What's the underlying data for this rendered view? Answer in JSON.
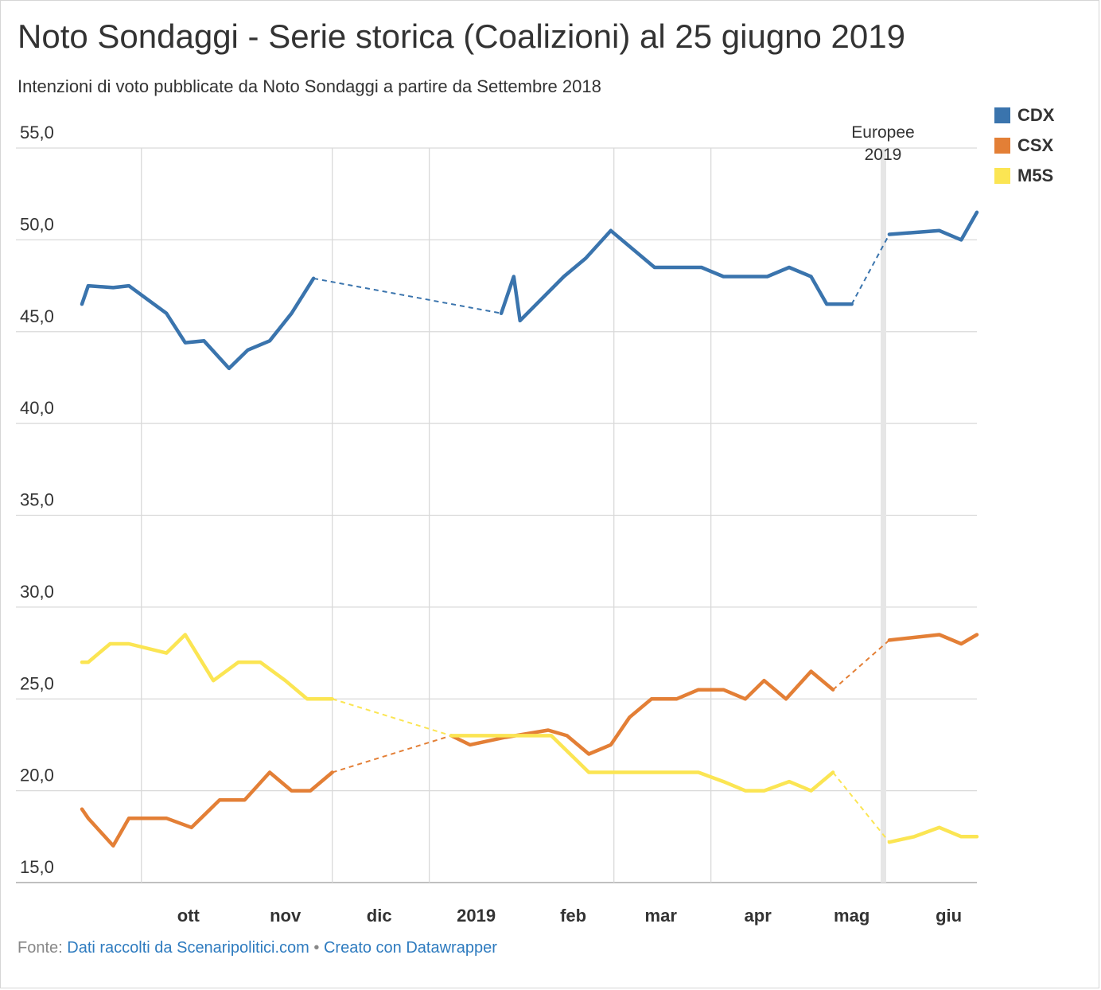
{
  "header": {
    "title": "Noto Sondaggi - Serie storica (Coalizioni) al 25 giugno 2019",
    "subtitle": "Intenzioni di voto pubblicate da Noto Sondaggi a partire da Settembre 2018"
  },
  "footer": {
    "source_prefix": "Fonte:",
    "source_link": "Dati raccolti da Scenaripolitici.com",
    "separator": "•",
    "made_with": "Creato con Datawrapper"
  },
  "chart_data": {
    "type": "line",
    "title": "Noto Sondaggi - Serie storica (Coalizioni) al 25 giugno 2019",
    "subtitle": "Intenzioni di voto pubblicate da Noto Sondaggi a partire da Settembre 2018",
    "xlabel": "",
    "ylabel": "",
    "ylim": [
      15,
      55
    ],
    "y_ticks": [
      "55,0",
      "50,0",
      "45,0",
      "40,0",
      "35,0",
      "30,0",
      "25,0",
      "20,0",
      "15,0"
    ],
    "y_tick_values": [
      55,
      50,
      45,
      40,
      35,
      30,
      25,
      20,
      15
    ],
    "xlim": [
      "2018-09-12",
      "2019-06-25"
    ],
    "x_ticks": [
      {
        "date": "2018-10-01",
        "label": "ott",
        "gridline": true
      },
      {
        "date": "2018-11-01",
        "label": "nov",
        "gridline": false
      },
      {
        "date": "2018-12-01",
        "label": "dic",
        "gridline": true
      },
      {
        "date": "2019-01-01",
        "label": "2019",
        "gridline": true
      },
      {
        "date": "2019-02-01",
        "label": "feb",
        "gridline": false
      },
      {
        "date": "2019-03-01",
        "label": "mar",
        "gridline": true
      },
      {
        "date": "2019-04-01",
        "label": "apr",
        "gridline": true
      },
      {
        "date": "2019-05-01",
        "label": "mag",
        "gridline": false
      },
      {
        "date": "2019-06-01",
        "label": "giu",
        "gridline": false
      }
    ],
    "grid": true,
    "legend_position": "top-right",
    "annotations": [
      {
        "label_line1": "Europee",
        "label_line2": "2019",
        "date": "2019-05-26"
      }
    ],
    "series": [
      {
        "name": "CDX",
        "color": "#3a74ad",
        "points": [
          [
            "2018-09-12",
            46.5
          ],
          [
            "2018-09-14",
            47.5
          ],
          [
            "2018-09-22",
            47.4
          ],
          [
            "2018-09-27",
            47.5
          ],
          [
            "2018-10-09",
            46.0
          ],
          [
            "2018-10-15",
            44.4
          ],
          [
            "2018-10-21",
            44.5
          ],
          [
            "2018-10-29",
            43.0
          ],
          [
            "2018-11-04",
            44.0
          ],
          [
            "2018-11-11",
            44.5
          ],
          [
            "2018-11-18",
            46.0
          ],
          [
            "2018-11-25",
            47.9
          ],
          [
            "2019-01-24",
            46.0
          ],
          [
            "2019-01-28",
            48.0
          ],
          [
            "2019-01-30",
            45.6
          ],
          [
            "2019-02-13",
            48.0
          ],
          [
            "2019-02-20",
            49.0
          ],
          [
            "2019-02-28",
            50.5
          ],
          [
            "2019-03-14",
            48.5
          ],
          [
            "2019-03-29",
            48.5
          ],
          [
            "2019-04-05",
            48.0
          ],
          [
            "2019-04-19",
            48.0
          ],
          [
            "2019-04-26",
            48.5
          ],
          [
            "2019-05-03",
            48.0
          ],
          [
            "2019-05-08",
            46.5
          ],
          [
            "2019-05-16",
            46.5
          ],
          [
            "2019-05-28",
            50.3
          ],
          [
            "2019-06-13",
            50.5
          ],
          [
            "2019-06-20",
            50.0
          ],
          [
            "2019-06-25",
            51.5
          ]
        ],
        "dashed_gaps": [
          [
            "2018-11-25",
            "2019-01-24"
          ],
          [
            "2019-05-16",
            "2019-05-28"
          ]
        ]
      },
      {
        "name": "CSX",
        "color": "#e37f36",
        "points": [
          [
            "2018-09-12",
            19.0
          ],
          [
            "2018-09-14",
            18.5
          ],
          [
            "2018-09-22",
            17.0
          ],
          [
            "2018-09-27",
            18.5
          ],
          [
            "2018-10-09",
            18.5
          ],
          [
            "2018-10-17",
            18.0
          ],
          [
            "2018-10-26",
            19.5
          ],
          [
            "2018-11-03",
            19.5
          ],
          [
            "2018-11-11",
            21.0
          ],
          [
            "2018-11-18",
            20.0
          ],
          [
            "2018-11-24",
            20.0
          ],
          [
            "2018-12-01",
            21.0
          ],
          [
            "2019-01-08",
            23.0
          ],
          [
            "2019-01-14",
            22.5
          ],
          [
            "2019-01-25",
            22.9
          ],
          [
            "2019-02-08",
            23.3
          ],
          [
            "2019-02-14",
            23.0
          ],
          [
            "2019-02-21",
            22.0
          ],
          [
            "2019-02-28",
            22.5
          ],
          [
            "2019-03-06",
            24.0
          ],
          [
            "2019-03-13",
            25.0
          ],
          [
            "2019-03-21",
            25.0
          ],
          [
            "2019-03-28",
            25.5
          ],
          [
            "2019-04-05",
            25.5
          ],
          [
            "2019-04-12",
            25.0
          ],
          [
            "2019-04-18",
            26.0
          ],
          [
            "2019-04-25",
            25.0
          ],
          [
            "2019-05-03",
            26.5
          ],
          [
            "2019-05-10",
            25.5
          ],
          [
            "2019-05-28",
            28.2
          ],
          [
            "2019-06-13",
            28.5
          ],
          [
            "2019-06-20",
            28.0
          ],
          [
            "2019-06-25",
            28.5
          ]
        ],
        "dashed_gaps": [
          [
            "2018-12-01",
            "2019-01-08"
          ],
          [
            "2019-05-10",
            "2019-05-28"
          ]
        ]
      },
      {
        "name": "M5S",
        "color": "#fbe553",
        "points": [
          [
            "2018-09-12",
            27.0
          ],
          [
            "2018-09-14",
            27.0
          ],
          [
            "2018-09-21",
            28.0
          ],
          [
            "2018-09-27",
            28.0
          ],
          [
            "2018-10-09",
            27.5
          ],
          [
            "2018-10-15",
            28.5
          ],
          [
            "2018-10-24",
            26.0
          ],
          [
            "2018-11-01",
            27.0
          ],
          [
            "2018-11-08",
            27.0
          ],
          [
            "2018-11-16",
            26.0
          ],
          [
            "2018-11-23",
            25.0
          ],
          [
            "2018-12-01",
            25.0
          ],
          [
            "2019-01-08",
            23.0
          ],
          [
            "2019-01-14",
            23.0
          ],
          [
            "2019-01-20",
            23.0
          ],
          [
            "2019-02-01",
            23.0
          ],
          [
            "2019-02-09",
            23.0
          ],
          [
            "2019-02-21",
            21.0
          ],
          [
            "2019-03-28",
            21.0
          ],
          [
            "2019-04-05",
            20.5
          ],
          [
            "2019-04-12",
            20.0
          ],
          [
            "2019-04-18",
            20.0
          ],
          [
            "2019-04-26",
            20.5
          ],
          [
            "2019-05-03",
            20.0
          ],
          [
            "2019-05-10",
            21.0
          ],
          [
            "2019-05-28",
            17.2
          ],
          [
            "2019-06-05",
            17.5
          ],
          [
            "2019-06-13",
            18.0
          ],
          [
            "2019-06-20",
            17.5
          ],
          [
            "2019-06-25",
            17.5
          ]
        ],
        "dashed_gaps": [
          [
            "2018-12-01",
            "2019-01-08"
          ],
          [
            "2019-05-10",
            "2019-05-28"
          ]
        ]
      }
    ]
  }
}
